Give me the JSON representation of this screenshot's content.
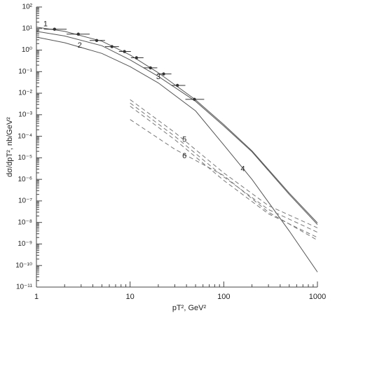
{
  "chart_data": {
    "type": "scatter",
    "x_label": "pT², GeV²",
    "y_label": "dσ/dpT², nb/GeV²",
    "log_x": true,
    "log_y": true,
    "minor_ticks": true,
    "xlim": [
      1,
      1000
    ],
    "xticks": [
      1,
      10,
      100,
      1000
    ],
    "ylim": [
      1e-11,
      100
    ],
    "yticks": [
      {
        "value": 100,
        "label": "10²"
      },
      {
        "value": 10,
        "label": "10¹"
      },
      {
        "value": 1,
        "label": "10⁰"
      },
      {
        "value": 0.1,
        "label": "10⁻¹"
      },
      {
        "value": 0.01,
        "label": "10⁻²"
      },
      {
        "value": 0.001,
        "label": "10⁻³"
      },
      {
        "value": 0.0001,
        "label": "10⁻⁴"
      },
      {
        "value": 1e-05,
        "label": "10⁻⁵"
      },
      {
        "value": 1e-06,
        "label": "10⁻⁶"
      },
      {
        "value": 1e-07,
        "label": "10⁻⁷"
      },
      {
        "value": 1e-08,
        "label": "10⁻⁸"
      },
      {
        "value": 1e-09,
        "label": "10⁻⁹"
      },
      {
        "value": 1e-10,
        "label": "10⁻¹⁰"
      },
      {
        "value": 1e-11,
        "label": "10⁻¹¹"
      }
    ],
    "points": {
      "color": "#333333",
      "x": [
        1.56,
        2.8,
        4.4,
        6.4,
        8.7,
        11.7,
        16.5,
        22.8,
        32,
        48.6
      ],
      "values": [
        9.3,
        5.5,
        2.8,
        1.45,
        0.86,
        0.44,
        0.15,
        0.078,
        0.023,
        0.0052
      ],
      "x_low": [
        1.2,
        2.1,
        3.7,
        5.4,
        7.6,
        10.2,
        13.9,
        19.5,
        27.6,
        38.9
      ],
      "x_high": [
        2.1,
        3.7,
        5.4,
        7.6,
        10.2,
        13.9,
        19.5,
        27.6,
        38.9,
        61.8
      ]
    },
    "curves": [
      {
        "style": "solid",
        "color": "#555555",
        "x": [
          1,
          2,
          5,
          10,
          20,
          50,
          100,
          200,
          500,
          1000
        ],
        "values": [
          11.6,
          7.4,
          2.6,
          0.59,
          0.089,
          0.0049,
          0.00035,
          2.1e-05,
          2.3e-07,
          9.5e-09
        ]
      },
      {
        "style": "solid",
        "color": "#555555",
        "x": [
          1,
          2,
          5,
          10,
          20,
          50,
          100,
          200,
          500,
          1000
        ],
        "values": [
          7.4,
          4.5,
          1.6,
          0.35,
          0.06,
          0.0042,
          0.0003,
          1.9e-05,
          2e-07,
          8e-09
        ]
      },
      {
        "style": "solid",
        "color": "#555555",
        "x": [
          1,
          2,
          5,
          10,
          20,
          50,
          100,
          200,
          500,
          1000
        ],
        "values": [
          4.0,
          2.2,
          0.7,
          0.17,
          0.03,
          0.0015,
          4e-05,
          1e-06,
          4e-09,
          5e-11
        ]
      },
      {
        "style": "dashed",
        "color": "#777777",
        "x": [
          10,
          30,
          100,
          300,
          1000
        ],
        "values": [
          0.005,
          0.00015,
          2e-06,
          6e-08,
          5.6e-09
        ]
      },
      {
        "style": "dashed",
        "color": "#777777",
        "x": [
          10,
          30,
          100,
          300,
          1000
        ],
        "values": [
          0.0035,
          0.0001,
          1.3e-06,
          4e-08,
          3.5e-09
        ]
      },
      {
        "style": "dashed",
        "color": "#777777",
        "x": [
          10,
          30,
          100,
          300,
          1000
        ],
        "values": [
          0.0025,
          7e-05,
          9e-07,
          2.5e-08,
          2e-09
        ]
      },
      {
        "style": "dashed",
        "color": "#777777",
        "x": [
          10,
          30,
          100,
          300,
          1000
        ],
        "values": [
          0.0006,
          2.5e-05,
          1.5e-06,
          3e-08,
          1.5e-09
        ]
      }
    ],
    "curve_labels": [
      {
        "text": "1",
        "x": 1.25,
        "y": 16
      },
      {
        "text": "2",
        "x": 2.9,
        "y": 1.6
      },
      {
        "text": "3",
        "x": 20,
        "y": 0.055
      },
      {
        "text": "4",
        "x": 160,
        "y": 3e-06
      },
      {
        "text": "5",
        "x": 38,
        "y": 7e-05
      },
      {
        "text": "6",
        "x": 38,
        "y": 1.2e-05
      }
    ]
  }
}
